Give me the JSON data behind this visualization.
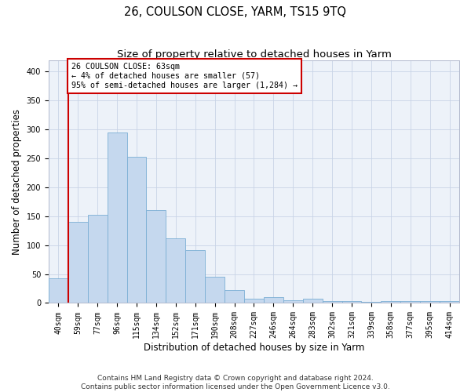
{
  "title": "26, COULSON CLOSE, YARM, TS15 9TQ",
  "subtitle": "Size of property relative to detached houses in Yarm",
  "xlabel": "Distribution of detached houses by size in Yarm",
  "ylabel": "Number of detached properties",
  "categories": [
    "40sqm",
    "59sqm",
    "77sqm",
    "96sqm",
    "115sqm",
    "134sqm",
    "152sqm",
    "171sqm",
    "190sqm",
    "208sqm",
    "227sqm",
    "246sqm",
    "264sqm",
    "283sqm",
    "302sqm",
    "321sqm",
    "339sqm",
    "358sqm",
    "377sqm",
    "395sqm",
    "414sqm"
  ],
  "values": [
    42,
    140,
    153,
    295,
    253,
    160,
    112,
    91,
    46,
    23,
    8,
    10,
    5,
    8,
    3,
    4,
    2,
    3,
    4,
    3,
    3
  ],
  "bar_color": "#c5d8ee",
  "bar_edge_color": "#7bafd4",
  "annotation_text": "26 COULSON CLOSE: 63sqm\n← 4% of detached houses are smaller (57)\n95% of semi-detached houses are larger (1,284) →",
  "annotation_box_color": "#ffffff",
  "annotation_box_edge": "#cc0000",
  "red_line_x": 0.5,
  "ylim": [
    0,
    420
  ],
  "yticks": [
    0,
    50,
    100,
    150,
    200,
    250,
    300,
    350,
    400
  ],
  "footer": "Contains HM Land Registry data © Crown copyright and database right 2024.\nContains public sector information licensed under the Open Government Licence v3.0.",
  "title_fontsize": 10.5,
  "subtitle_fontsize": 9.5,
  "axis_label_fontsize": 8.5,
  "tick_fontsize": 7,
  "footer_fontsize": 6.5,
  "bg_color": "#edf2f9"
}
